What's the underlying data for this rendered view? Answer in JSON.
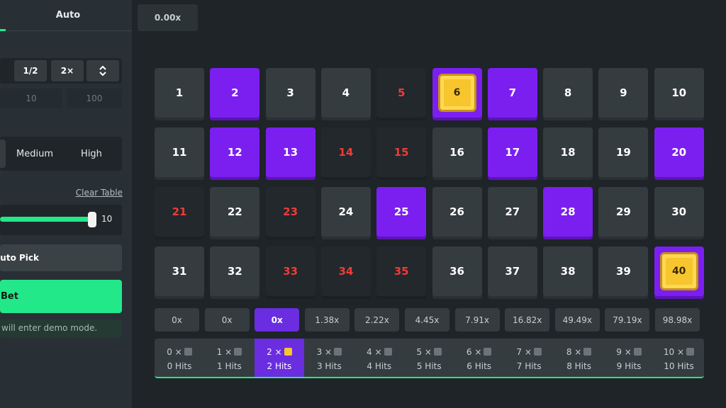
{
  "sidebar": {
    "tab": "Auto",
    "half": "1/2",
    "double": "2×",
    "presets": [
      "10",
      "100"
    ],
    "risk": [
      "Medium",
      "High"
    ],
    "clear": "Clear Table",
    "slider": "10",
    "autopick": "Auto Pick",
    "bet": "Bet",
    "demo": "will enter demo mode."
  },
  "board": {
    "last": "0.00x",
    "tiles": [
      {
        "label": "1",
        "state": "idle"
      },
      {
        "label": "2",
        "state": "selected"
      },
      {
        "label": "3",
        "state": "idle"
      },
      {
        "label": "4",
        "state": "idle"
      },
      {
        "label": "5",
        "state": "drawn"
      },
      {
        "label": "6",
        "state": "hit"
      },
      {
        "label": "7",
        "state": "selected"
      },
      {
        "label": "8",
        "state": "idle"
      },
      {
        "label": "9",
        "state": "idle"
      },
      {
        "label": "10",
        "state": "idle"
      },
      {
        "label": "11",
        "state": "idle"
      },
      {
        "label": "12",
        "state": "selected"
      },
      {
        "label": "13",
        "state": "selected"
      },
      {
        "label": "14",
        "state": "drawn"
      },
      {
        "label": "15",
        "state": "drawn"
      },
      {
        "label": "16",
        "state": "idle"
      },
      {
        "label": "17",
        "state": "selected"
      },
      {
        "label": "18",
        "state": "idle"
      },
      {
        "label": "19",
        "state": "idle"
      },
      {
        "label": "20",
        "state": "selected"
      },
      {
        "label": "21",
        "state": "drawn"
      },
      {
        "label": "22",
        "state": "idle"
      },
      {
        "label": "23",
        "state": "drawn"
      },
      {
        "label": "24",
        "state": "idle"
      },
      {
        "label": "25",
        "state": "selected"
      },
      {
        "label": "26",
        "state": "idle"
      },
      {
        "label": "27",
        "state": "idle"
      },
      {
        "label": "28",
        "state": "selected"
      },
      {
        "label": "29",
        "state": "idle"
      },
      {
        "label": "30",
        "state": "idle"
      },
      {
        "label": "31",
        "state": "idle"
      },
      {
        "label": "32",
        "state": "idle"
      },
      {
        "label": "33",
        "state": "drawn"
      },
      {
        "label": "34",
        "state": "drawn"
      },
      {
        "label": "35",
        "state": "drawn"
      },
      {
        "label": "36",
        "state": "idle"
      },
      {
        "label": "37",
        "state": "idle"
      },
      {
        "label": "38",
        "state": "idle"
      },
      {
        "label": "39",
        "state": "idle"
      },
      {
        "label": "40",
        "state": "hit"
      }
    ],
    "multipliers": [
      "0x",
      "0x",
      "0x",
      "1.38x",
      "2.22x",
      "4.45x",
      "7.91x",
      "16.82x",
      "49.49x",
      "79.19x",
      "98.98x"
    ],
    "hits": [
      {
        "count": "0 ×",
        "label": "0 Hits"
      },
      {
        "count": "1 ×",
        "label": "1 Hits"
      },
      {
        "count": "2 ×",
        "label": "2 Hits"
      },
      {
        "count": "3 ×",
        "label": "3 Hits"
      },
      {
        "count": "4 ×",
        "label": "4 Hits"
      },
      {
        "count": "5 ×",
        "label": "5 Hits"
      },
      {
        "count": "6 ×",
        "label": "6 Hits"
      },
      {
        "count": "7 ×",
        "label": "7 Hits"
      },
      {
        "count": "8 ×",
        "label": "8 Hits"
      },
      {
        "count": "9 ×",
        "label": "9 Hits"
      },
      {
        "count": "10 ×",
        "label": "10 Hits"
      }
    ],
    "active": 2
  }
}
